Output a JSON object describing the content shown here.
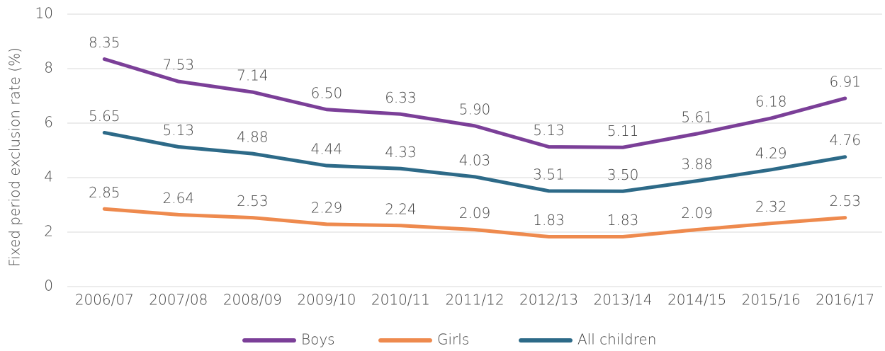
{
  "chart_data": {
    "type": "line",
    "ylabel": "Fixed period exclusion rate (%)",
    "categories": [
      "2006/07",
      "2007/08",
      "2008/09",
      "2009/10",
      "2010/11",
      "2011/12",
      "2012/13",
      "2013/14",
      "2014/15",
      "2015/16",
      "2016/17"
    ],
    "series": [
      {
        "name": "Boys",
        "color": "#7b3f98",
        "values": [
          8.35,
          7.53,
          7.14,
          6.5,
          6.33,
          5.9,
          5.13,
          5.11,
          5.61,
          6.18,
          6.91
        ],
        "value_labels": [
          "8.35",
          "7.53",
          "7.14",
          "6.50",
          "6.33",
          "5.90",
          "5.13",
          "5.11",
          "5.61",
          "6.18",
          "6.91"
        ]
      },
      {
        "name": "Girls",
        "color": "#ee8a4e",
        "values": [
          2.85,
          2.64,
          2.53,
          2.29,
          2.24,
          2.09,
          1.83,
          1.83,
          2.09,
          2.32,
          2.53
        ],
        "value_labels": [
          "2.85",
          "2.64",
          "2.53",
          "2.29",
          "2.24",
          "2.09",
          "1.83",
          "1.83",
          "2.09",
          "2.32",
          "2.53"
        ]
      },
      {
        "name": "All children",
        "color": "#2d6a88",
        "values": [
          5.65,
          5.13,
          4.88,
          4.44,
          4.33,
          4.03,
          3.51,
          3.5,
          3.88,
          4.29,
          4.76
        ],
        "value_labels": [
          "5.65",
          "5.13",
          "4.88",
          "4.44",
          "4.33",
          "4.03",
          "3.51",
          "3.50",
          "3.88",
          "4.29",
          "4.76"
        ]
      }
    ],
    "ylim": [
      0,
      10
    ],
    "yticks": [
      0,
      2,
      4,
      6,
      8,
      10
    ],
    "grid": true,
    "legend": "bottom"
  }
}
